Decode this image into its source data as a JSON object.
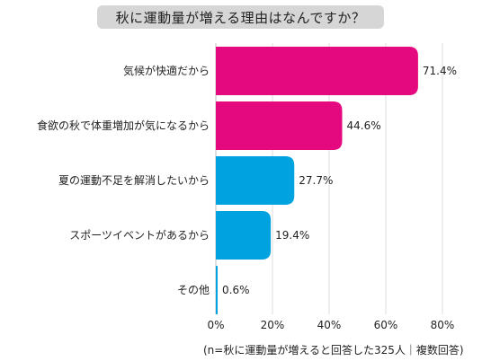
{
  "chart_data": {
    "type": "bar",
    "orientation": "horizontal",
    "title": "秋に運動量が増える理由はなんですか？",
    "categories": [
      "気候が快適だから",
      "食欲の秋で体重増加が気になるから",
      "夏の運動不足を解消したいから",
      "スポーツイベントがあるから",
      "その他"
    ],
    "values": [
      71.4,
      44.6,
      27.7,
      19.4,
      0.6
    ],
    "value_labels": [
      "71.4%",
      "44.6%",
      "27.7%",
      "19.4%",
      "0.6%"
    ],
    "bar_colors": [
      "#e5097f",
      "#e5097f",
      "#00a3e0",
      "#00a3e0",
      "#00a3e0"
    ],
    "xlim": [
      0,
      80
    ],
    "xticks": [
      0,
      20,
      40,
      60,
      80
    ],
    "xtick_labels": [
      "0%",
      "20%",
      "40%",
      "60%",
      "80%"
    ],
    "grid": true,
    "footnote": "(n=秋に運動量が増えると回答した325人｜複数回答)"
  }
}
